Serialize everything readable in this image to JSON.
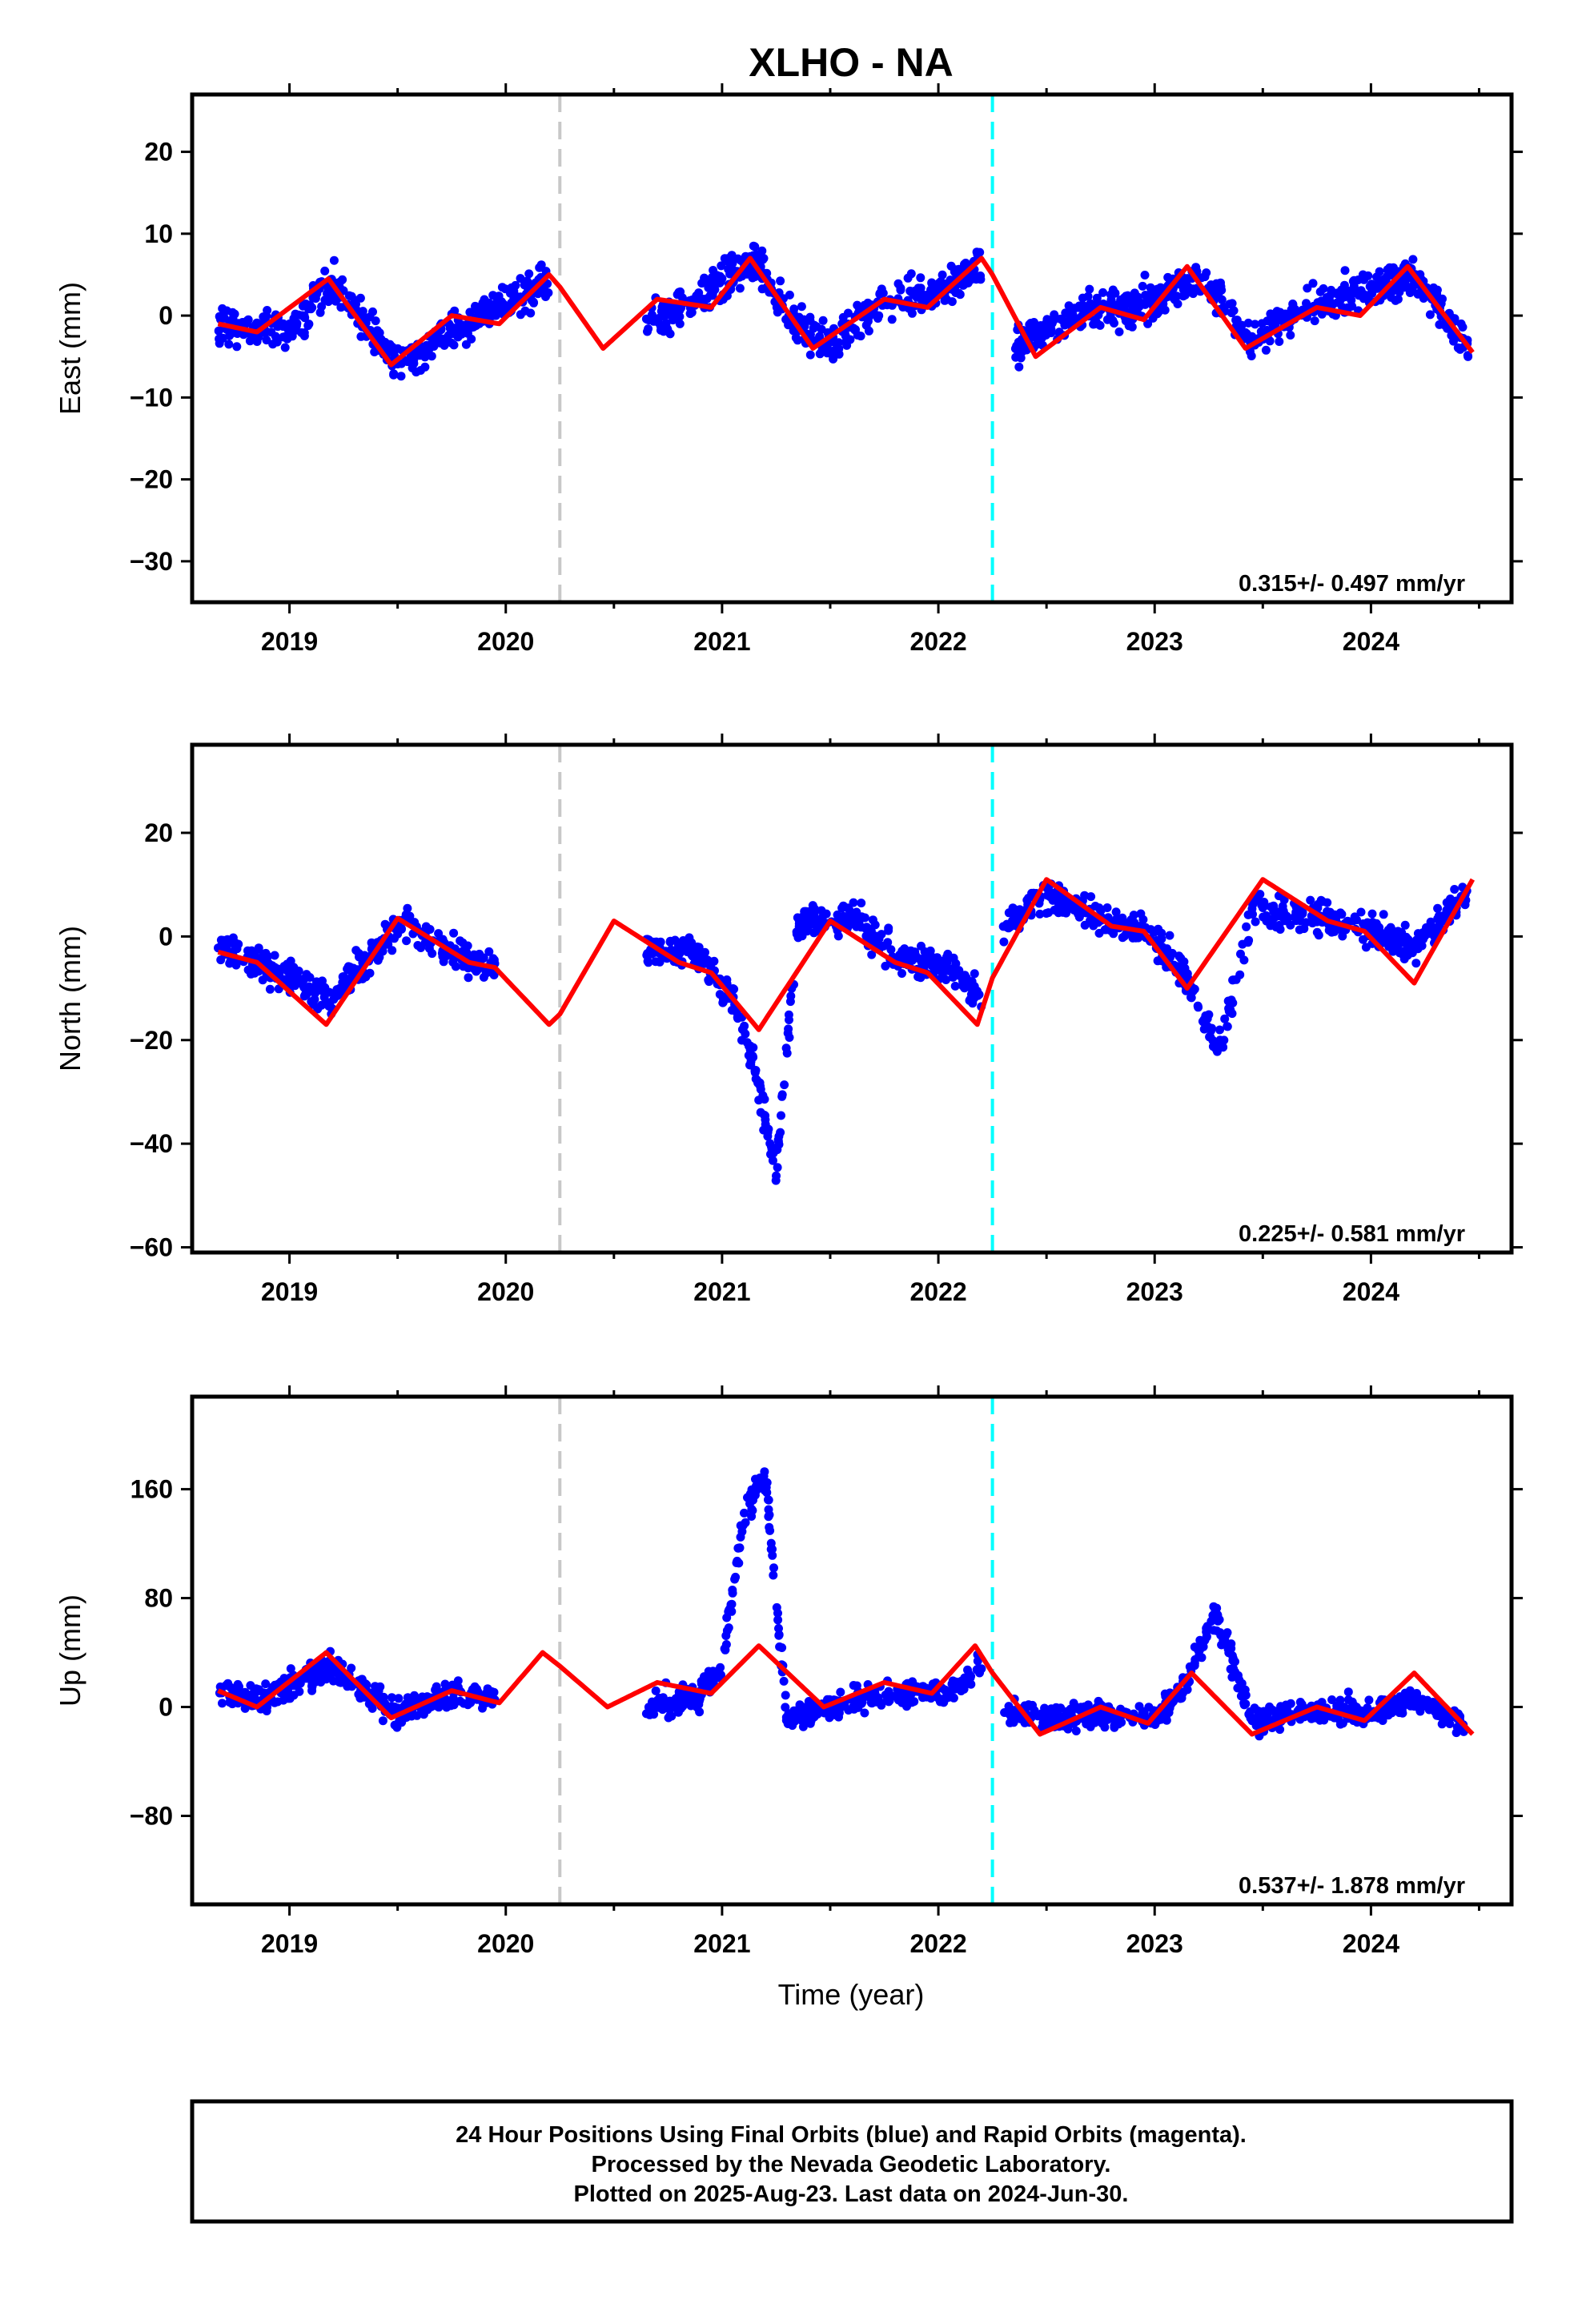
{
  "title": "XLHO - NA",
  "xlabel": "Time (year)",
  "footer": [
    "24 Hour Positions Using Final Orbits (blue) and Rapid Orbits (magenta).",
    "Processed by the Nevada Geodetic Laboratory.",
    "Plotted on 2025-Aug-23. Last data on 2024-Jun-30."
  ],
  "colors": {
    "final_orbits": "#0000ff",
    "fit": "#ff0000",
    "antenna_change": "#c8c8c8",
    "equipment_change": "#00ffff"
  },
  "chart_data": [
    {
      "type": "scatter",
      "component": "East",
      "ylabel": "East (mm)",
      "rate_label": "0.315+/- 0.497 mm/yr",
      "xlim": [
        2018.55,
        2024.65
      ],
      "ylim": [
        -35,
        27
      ],
      "xticks": [
        2019,
        2020,
        2021,
        2022,
        2023,
        2024
      ],
      "yticks": [
        -30,
        -20,
        -10,
        0,
        10,
        20
      ],
      "grid": false,
      "markers": [
        2020.25,
        2022.25
      ],
      "segments": [
        {
          "x": [
            2018.67,
            2019.0,
            2019.2,
            2019.5,
            2019.8,
            2020.0,
            2020.2
          ],
          "y": [
            -1,
            -2,
            4,
            -6,
            -1,
            2,
            4
          ]
        },
        {
          "x": [
            2020.65,
            2020.85,
            2021.0,
            2021.15,
            2021.3,
            2021.5,
            2021.75,
            2022.0,
            2022.2
          ],
          "y": [
            -1,
            1,
            4,
            7,
            0,
            -4,
            2,
            3,
            6
          ]
        },
        {
          "x": [
            2022.35,
            2022.6,
            2022.85,
            2023.0,
            2023.2,
            2023.45,
            2023.7,
            2023.95,
            2024.2,
            2024.45
          ],
          "y": [
            -4,
            0,
            1,
            2,
            5,
            -3,
            1,
            3,
            5,
            -4
          ]
        }
      ],
      "fit": {
        "x": [
          2018.67,
          2018.85,
          2019.18,
          2019.47,
          2019.75,
          2019.97,
          2020.2,
          2020.25,
          2020.45,
          2020.7,
          2020.95,
          2021.13,
          2021.42,
          2021.75,
          2021.95,
          2022.2,
          2022.25,
          2022.45,
          2022.75,
          2022.95,
          2023.15,
          2023.42,
          2023.75,
          2023.95,
          2024.17,
          2024.47
        ],
        "y": [
          -1,
          -2,
          4.5,
          -6,
          0,
          -1,
          5,
          3.5,
          -4,
          2,
          1,
          7,
          -4,
          2,
          1,
          7,
          5,
          -5,
          1,
          -0.5,
          6,
          -4,
          1,
          0,
          6,
          -4.5
        ]
      }
    },
    {
      "type": "scatter",
      "component": "North",
      "ylabel": "North (mm)",
      "rate_label": "0.225+/- 0.581 mm/yr",
      "xlim": [
        2018.55,
        2024.65
      ],
      "ylim": [
        -61,
        37
      ],
      "xticks": [
        2019,
        2020,
        2021,
        2022,
        2023,
        2024
      ],
      "yticks": [
        -60,
        -40,
        -20,
        0,
        20
      ],
      "grid": false,
      "markers": [
        2020.25,
        2022.25
      ],
      "segments": [
        {
          "x": [
            2018.67,
            2018.85,
            2019.2,
            2019.5,
            2019.75,
            2019.95
          ],
          "y": [
            -2,
            -5,
            -12,
            2,
            -3,
            -6
          ]
        },
        {
          "x": [
            2020.65,
            2020.9,
            2021.05,
            2021.15,
            2021.25,
            2021.35,
            2021.6,
            2021.8,
            2022.05,
            2022.2
          ],
          "y": [
            -2,
            -4,
            -12,
            -25,
            -45,
            2,
            4,
            -4,
            -6,
            -12
          ]
        },
        {
          "x": [
            2022.3,
            2022.5,
            2022.75,
            2022.95,
            2023.15,
            2023.3,
            2023.45,
            2023.75,
            2024.0,
            2024.2,
            2024.45
          ],
          "y": [
            2,
            8,
            3,
            1,
            -8,
            -22,
            5,
            4,
            1,
            -2,
            9
          ]
        }
      ],
      "fit": {
        "x": [
          2018.67,
          2018.85,
          2019.17,
          2019.5,
          2019.83,
          2019.95,
          2020.2,
          2020.25,
          2020.5,
          2020.8,
          2020.95,
          2021.17,
          2021.5,
          2021.8,
          2021.95,
          2022.18,
          2022.25,
          2022.5,
          2022.8,
          2022.95,
          2023.15,
          2023.5,
          2023.8,
          2023.97,
          2024.2,
          2024.47
        ],
        "y": [
          -3,
          -5,
          -17,
          3.5,
          -5,
          -6,
          -17,
          -15,
          3,
          -5,
          -7,
          -18,
          3,
          -5,
          -7,
          -17,
          -8,
          11,
          2,
          1,
          -10,
          11,
          3,
          1,
          -9,
          11
        ]
      }
    },
    {
      "type": "scatter",
      "component": "Up",
      "ylabel": "Up (mm)",
      "rate_label": "0.537+/- 1.878 mm/yr",
      "xlim": [
        2018.55,
        2024.65
      ],
      "ylim": [
        -145,
        228
      ],
      "xticks": [
        2019,
        2020,
        2021,
        2022,
        2023,
        2024
      ],
      "yticks": [
        -80,
        0,
        80,
        160
      ],
      "grid": false,
      "markers": [
        2020.25,
        2022.25
      ],
      "segments": [
        {
          "x": [
            2018.67,
            2018.85,
            2019.2,
            2019.5,
            2019.75,
            2019.95
          ],
          "y": [
            12,
            5,
            30,
            -5,
            10,
            5
          ]
        },
        {
          "x": [
            2020.65,
            2020.9,
            2021.0,
            2021.1,
            2021.2,
            2021.3,
            2021.6,
            2021.85,
            2022.05,
            2022.2
          ],
          "y": [
            0,
            10,
            30,
            140,
            170,
            -8,
            5,
            10,
            10,
            30
          ]
        },
        {
          "x": [
            2022.3,
            2022.55,
            2022.8,
            2023.0,
            2023.15,
            2023.28,
            2023.45,
            2023.75,
            2024.0,
            2024.2,
            2024.45
          ],
          "y": [
            -5,
            -10,
            -5,
            -8,
            20,
            70,
            -10,
            -2,
            -5,
            5,
            -15
          ]
        }
      ],
      "fit": {
        "x": [
          2018.67,
          2018.85,
          2019.17,
          2019.47,
          2019.75,
          2019.97,
          2020.17,
          2020.25,
          2020.47,
          2020.7,
          2020.95,
          2021.17,
          2021.47,
          2021.75,
          2021.97,
          2022.17,
          2022.25,
          2022.47,
          2022.75,
          2022.97,
          2023.17,
          2023.45,
          2023.75,
          2023.97,
          2024.2,
          2024.47
        ],
        "y": [
          12,
          0,
          40,
          -8,
          12,
          3,
          40,
          30,
          0,
          18,
          10,
          45,
          0,
          18,
          10,
          45,
          25,
          -20,
          0,
          -12,
          25,
          -20,
          0,
          -10,
          25,
          -20
        ]
      }
    }
  ]
}
